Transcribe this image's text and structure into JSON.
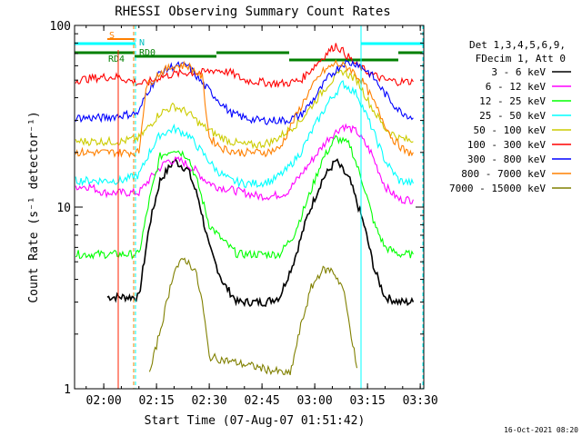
{
  "chart_data": {
    "type": "line",
    "title": "RHESSI Observing Summary Count Rates",
    "xlabel": "Start Time (07-Aug-07 01:51:42)",
    "ylabel": "Count Rate (s⁻¹ detector⁻¹)",
    "y_scale": "log",
    "ylim": [
      1,
      100
    ],
    "xlim": [
      "01:51:42",
      "03:31:00"
    ],
    "x_ticks": [
      "02:00",
      "02:15",
      "02:30",
      "02:45",
      "03:00",
      "03:15",
      "03:30"
    ],
    "y_ticks": [
      "1",
      "10",
      "100"
    ],
    "legend_header": [
      "Det 1,3,4,5,6,9,",
      "FDecim 1, Att 0"
    ],
    "legend_position": "right",
    "timestamp": "16-Oct-2021 08:20",
    "flag_labels": {
      "saa": "S",
      "night": "N",
      "rd0": "RD0",
      "rd4": "RD4"
    },
    "series": [
      {
        "name": "3 - 6 keV",
        "color": "#000000",
        "x": [
          "02:01",
          "02:05",
          "02:10",
          "02:13",
          "02:16",
          "02:20",
          "02:24",
          "02:27",
          "02:30",
          "02:34",
          "02:38",
          "02:42",
          "02:46",
          "02:50",
          "02:54",
          "02:58",
          "03:02",
          "03:06",
          "03:10",
          "03:14",
          "03:17",
          "03:20",
          "03:24",
          "03:28"
        ],
        "y": [
          3.2,
          3.2,
          3.2,
          8,
          14,
          18,
          16,
          11,
          6,
          3.8,
          3,
          3,
          3,
          3.2,
          5,
          9,
          14,
          18,
          14,
          8,
          4.5,
          3.2,
          3,
          3
        ]
      },
      {
        "name": "6 - 12 keV",
        "color": "#ff00ff",
        "x": [
          "01:52",
          "01:56",
          "02:00",
          "02:05",
          "02:10",
          "02:14",
          "02:18",
          "02:22",
          "02:26",
          "02:29",
          "02:32",
          "02:36",
          "02:40",
          "02:44",
          "02:48",
          "02:52",
          "02:56",
          "03:00",
          "03:04",
          "03:08",
          "03:12",
          "03:16",
          "03:20",
          "03:24",
          "03:28"
        ],
        "y": [
          13,
          13,
          12,
          12,
          12,
          15,
          18,
          18,
          16,
          14,
          13,
          12.5,
          12,
          11.5,
          11.5,
          12,
          15,
          19,
          24,
          28,
          26,
          20,
          13,
          11,
          11
        ]
      },
      {
        "name": "12 - 25 keV",
        "color": "#00ff00",
        "x": [
          "01:52",
          "02:00",
          "02:05",
          "02:10",
          "02:13",
          "02:16",
          "02:20",
          "02:24",
          "02:27",
          "02:30",
          "02:34",
          "02:38",
          "02:42",
          "02:46",
          "02:50",
          "02:54",
          "02:58",
          "03:02",
          "03:06",
          "03:10",
          "03:14",
          "03:17",
          "03:20",
          "03:24",
          "03:28"
        ],
        "y": [
          5.5,
          5.5,
          5.5,
          5.5,
          11,
          19,
          21,
          19,
          13,
          8,
          6.5,
          5.5,
          5.5,
          5.5,
          5.5,
          7,
          11,
          18,
          24,
          22,
          13,
          8,
          6,
          5.5,
          5.5
        ]
      },
      {
        "name": "25 - 50 keV",
        "color": "#00ffff",
        "x": [
          "01:52",
          "02:00",
          "02:05",
          "02:10",
          "02:13",
          "02:16",
          "02:20",
          "02:24",
          "02:28",
          "02:32",
          "02:36",
          "02:40",
          "02:44",
          "02:48",
          "02:52",
          "02:56",
          "03:00",
          "03:04",
          "03:08",
          "03:12",
          "03:16",
          "03:20",
          "03:24",
          "03:28"
        ],
        "y": [
          14,
          14,
          14,
          15,
          20,
          25,
          27,
          25,
          20,
          16,
          14,
          13.5,
          13.5,
          14,
          16,
          20,
          28,
          38,
          48,
          42,
          28,
          18,
          14,
          13.5
        ]
      },
      {
        "name": "50 - 100 keV",
        "color": "#cccc00",
        "x": [
          "01:52",
          "02:00",
          "02:05",
          "02:10",
          "02:13",
          "02:16",
          "02:20",
          "02:24",
          "02:28",
          "02:32",
          "02:36",
          "02:40",
          "02:44",
          "02:48",
          "02:52",
          "02:56",
          "03:00",
          "03:04",
          "03:08",
          "03:12",
          "03:16",
          "03:20",
          "03:24",
          "03:28"
        ],
        "y": [
          23,
          23,
          23,
          24,
          28,
          33,
          36,
          33,
          28,
          25,
          23,
          22,
          22,
          23,
          26,
          30,
          38,
          48,
          56,
          50,
          36,
          27,
          24,
          23
        ]
      },
      {
        "name": "100 - 300 keV",
        "color": "#ff0000",
        "x": [
          "01:52",
          "01:56",
          "02:00",
          "02:04",
          "02:10",
          "02:12",
          "02:16",
          "02:20",
          "02:24",
          "02:28",
          "02:32",
          "02:36",
          "02:40",
          "02:44",
          "02:48",
          "02:52",
          "02:56",
          "03:00",
          "03:04",
          "03:06",
          "03:08",
          "03:12",
          "03:16",
          "03:20",
          "03:24",
          "03:28"
        ],
        "y": [
          50,
          51,
          52,
          52,
          48,
          48,
          52,
          54,
          55,
          55,
          57,
          55,
          50,
          49,
          48,
          48,
          50,
          60,
          72,
          78,
          72,
          60,
          54,
          50,
          49,
          49
        ]
      },
      {
        "name": "300 - 800 keV",
        "color": "#0000ff",
        "x": [
          "01:52",
          "02:00",
          "02:05",
          "02:10",
          "02:12",
          "02:16",
          "02:20",
          "02:24",
          "02:28",
          "02:32",
          "02:36",
          "02:40",
          "02:44",
          "02:48",
          "02:52",
          "02:56",
          "03:00",
          "03:04",
          "03:08",
          "03:12",
          "03:16",
          "03:20",
          "03:24",
          "03:28"
        ],
        "y": [
          31,
          31,
          32,
          33,
          42,
          55,
          60,
          60,
          48,
          40,
          33,
          31,
          30,
          30,
          30,
          32,
          40,
          52,
          62,
          62,
          54,
          42,
          34,
          31
        ]
      },
      {
        "name": "800 - 7000 keV",
        "color": "#ff8000",
        "x": [
          "01:52",
          "02:00",
          "02:05",
          "02:10",
          "02:12",
          "02:16",
          "02:20",
          "02:24",
          "02:28",
          "02:30",
          "02:34",
          "02:38",
          "02:42",
          "02:46",
          "02:50",
          "02:54",
          "02:58",
          "03:02",
          "03:06",
          "03:10",
          "03:14",
          "03:18",
          "03:22",
          "03:26",
          "03:28"
        ],
        "y": [
          20,
          20,
          20,
          20,
          46,
          55,
          60,
          60,
          52,
          24,
          21,
          20,
          20,
          20,
          21,
          30,
          42,
          55,
          62,
          58,
          48,
          34,
          24,
          20,
          20
        ]
      },
      {
        "name": "7000 - 15000 keV",
        "color": "#808000",
        "x": [
          "02:13",
          "02:17",
          "02:20",
          "02:23",
          "02:26",
          "02:28",
          "02:30",
          "02:53",
          "02:56",
          "02:59",
          "03:02",
          "03:05",
          "03:08",
          "03:10",
          "03:12"
        ],
        "y": [
          1.2,
          2.5,
          4.5,
          5.2,
          4.5,
          3,
          1.5,
          1.2,
          2.2,
          3.6,
          4.5,
          4.5,
          3.6,
          2.2,
          1.3
        ]
      }
    ]
  }
}
